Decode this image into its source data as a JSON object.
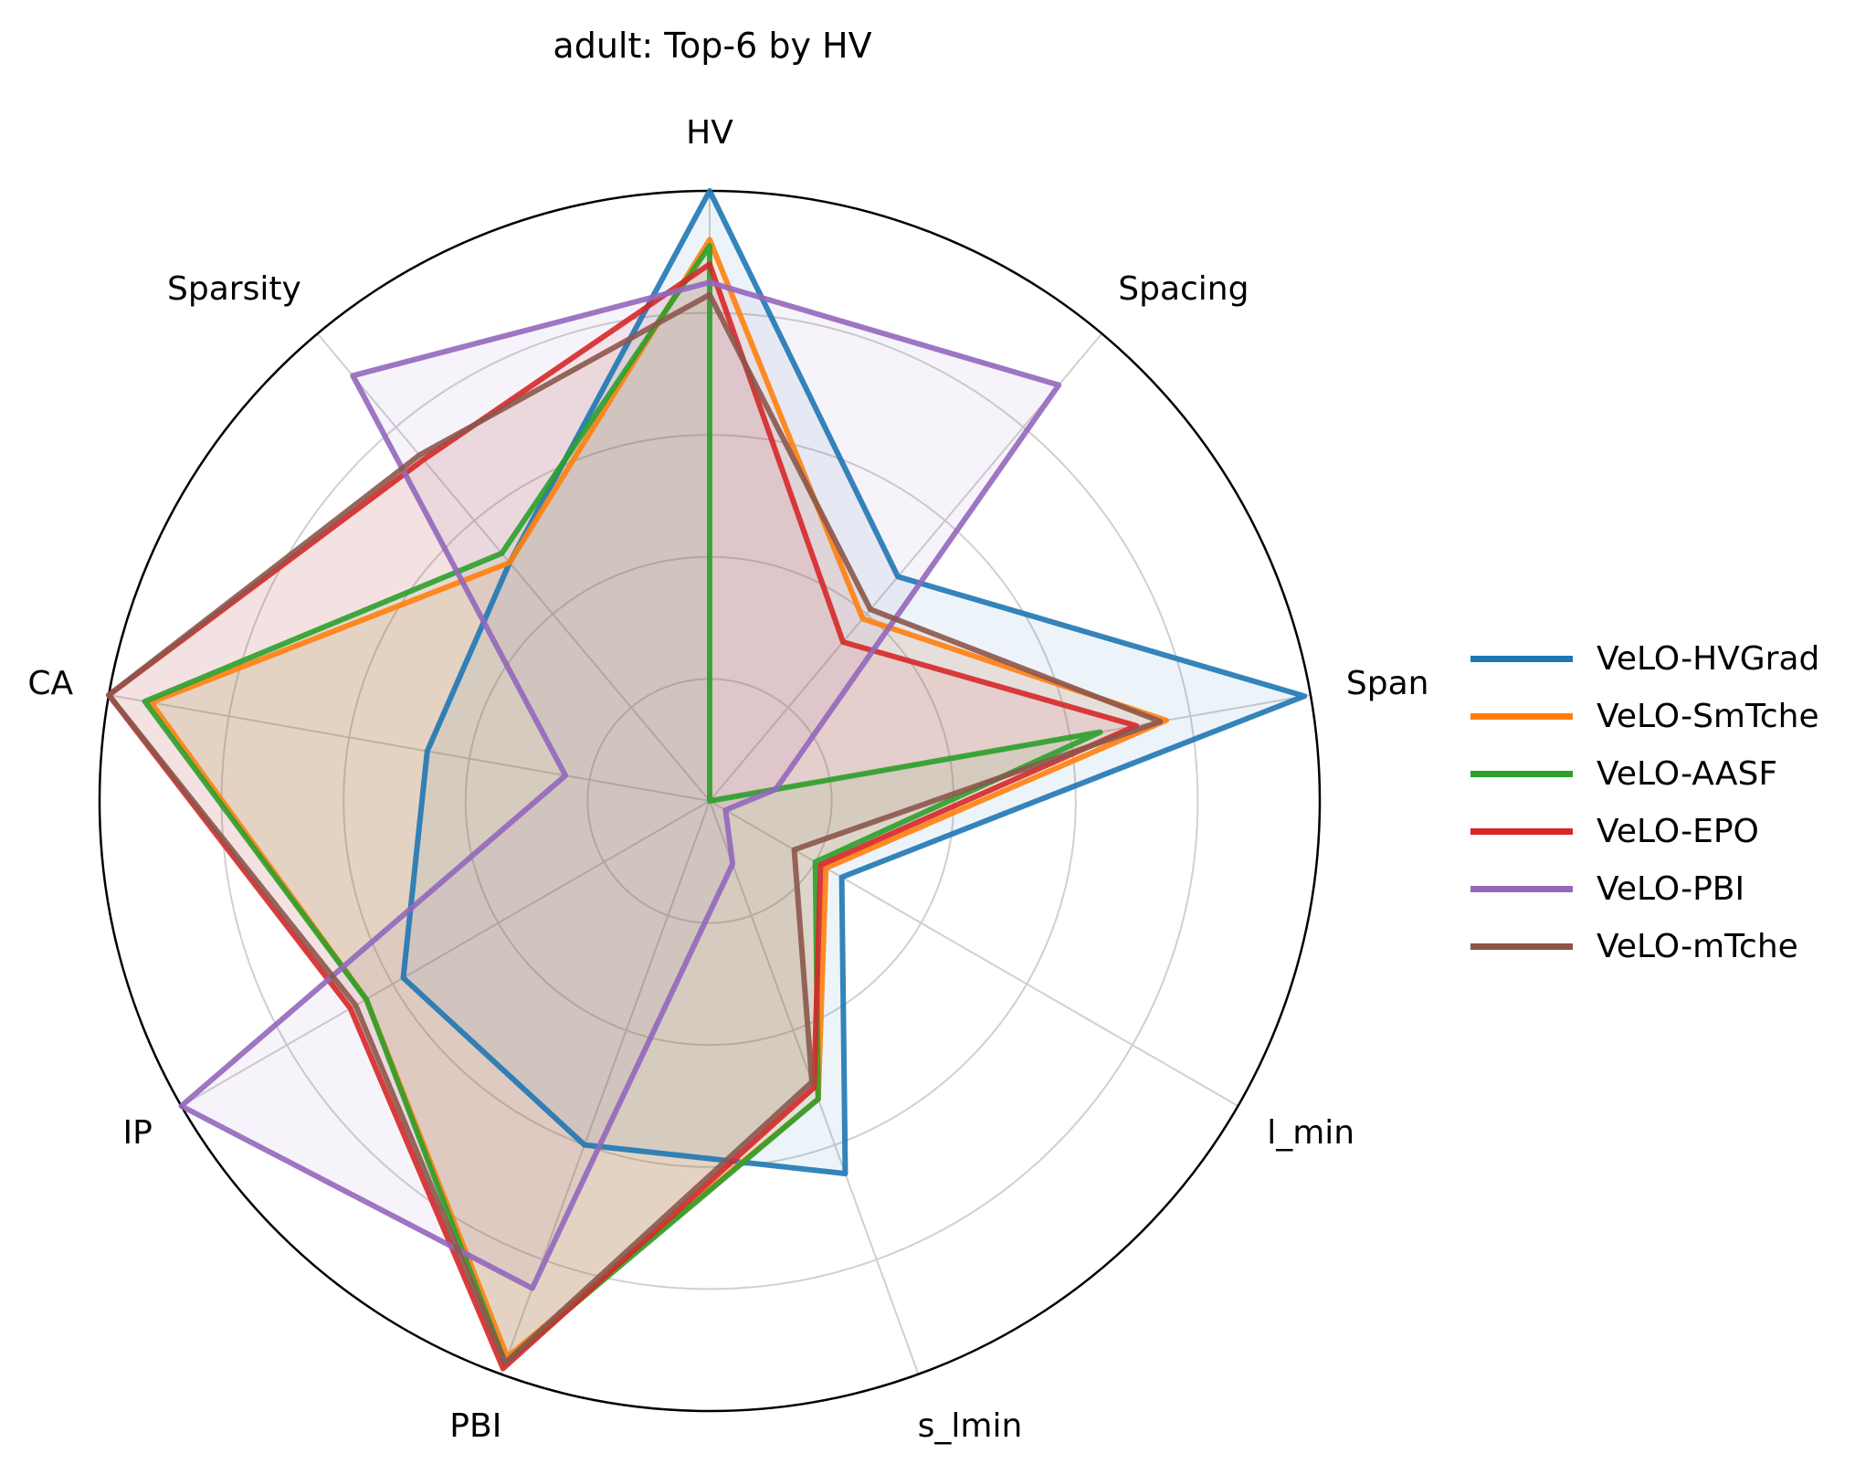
{
  "chart_data": {
    "type": "radar",
    "title": "adult: Top-6 by HV",
    "axes": [
      "HV",
      "Spacing",
      "Span",
      "l_min",
      "s_lmin",
      "PBI",
      "IP",
      "CA",
      "Sparsity"
    ],
    "rlim": [
      0,
      1
    ],
    "grid": true,
    "legend_position": "right",
    "series": [
      {
        "name": "VeLO-HVGrad",
        "color": "#1f77b4",
        "values": [
          1.0,
          0.48,
          0.99,
          0.25,
          0.65,
          0.6,
          0.58,
          0.47,
          0.51
        ]
      },
      {
        "name": "VeLO-SmTche",
        "color": "#ff7f0e",
        "values": [
          0.92,
          0.39,
          0.76,
          0.22,
          0.52,
          0.97,
          0.65,
          0.93,
          0.51
        ]
      },
      {
        "name": "VeLO-AASF",
        "color": "#2ca02c",
        "values": [
          0.91,
          0.0,
          0.65,
          0.2,
          0.52,
          0.98,
          0.65,
          0.94,
          0.53
        ]
      },
      {
        "name": "VeLO-EPO",
        "color": "#d62728",
        "values": [
          0.88,
          0.34,
          0.71,
          0.21,
          0.5,
          0.99,
          0.68,
          1.0,
          0.73
        ]
      },
      {
        "name": "VeLO-PBI",
        "color": "#9467bd",
        "values": [
          0.85,
          0.89,
          0.11,
          0.03,
          0.11,
          0.85,
          1.0,
          0.24,
          0.91
        ]
      },
      {
        "name": "VeLO-mTche",
        "color": "#8c564b",
        "values": [
          0.83,
          0.41,
          0.75,
          0.16,
          0.49,
          0.98,
          0.67,
          1.0,
          0.74
        ]
      }
    ]
  }
}
